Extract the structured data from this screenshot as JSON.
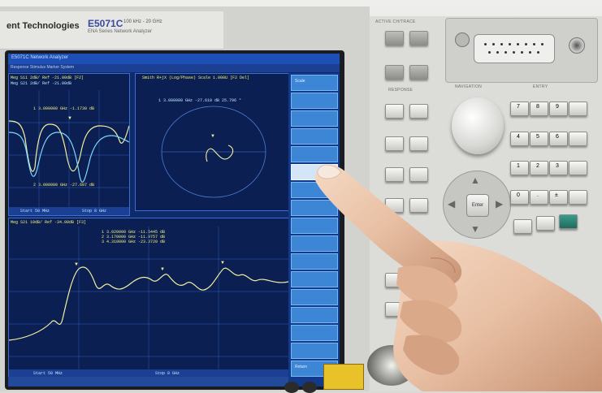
{
  "instrument": {
    "brand": "ent Technologies",
    "model": "E5071C",
    "spec": "100 kHz - 20 GHz",
    "description": "ENA Series Network Analyzer"
  },
  "screen": {
    "title": "E5071C Network Analyzer",
    "menu": "Response  Stimulus  Marker  System",
    "trace1": {
      "header": "Meg S11 2dB/ Ref -21.00dB [F2]",
      "subheader": "Meg S21 2dB/ Ref -21.00dB",
      "marker1": "1  3.000000 GHz -1.1730 dB",
      "marker2": "2  3.000000 GHz -27.607 dB",
      "footer_left": "Start 50 MHz",
      "footer_right": "Stop 8 GHz"
    },
    "trace2": {
      "header": "Smith R+jX (Log/Phase) Scale 1.000U [F2 Del]",
      "marker": "1  3.000000 GHz -27.610 dB  25.796 °"
    },
    "trace3": {
      "header": "Meg S21 10dB/ Ref -34.00dB [F3]",
      "markers": [
        "1  3.020000 GHz -11.5445 dB",
        "2  3.170000 GHz -11.9757 dB",
        "3  4.310000 GHz -23.3720 dB"
      ],
      "footer_left": "Start 50 MHz",
      "footer_right": "Stop 8 GHz"
    },
    "softkeys": [
      "Scale",
      "",
      "",
      "",
      "",
      "",
      "",
      "",
      "",
      "",
      "",
      "",
      "",
      "",
      "",
      "",
      "Return"
    ],
    "softkey_selected_index": 5
  },
  "panel": {
    "active_ch_trace_header": "ACTIVE CH/TRACE",
    "response_header": "RESPONSE",
    "navigation_header": "NAVIGATION",
    "entry_header": "ENTRY",
    "keypad": [
      "7",
      "8",
      "9",
      "",
      "4",
      "5",
      "6",
      "",
      "1",
      "2",
      "3",
      "",
      "0",
      ".",
      "±",
      ""
    ],
    "dpad_center": "Enter"
  },
  "colors": {
    "screen_bg": "#0d2a6a",
    "trace_yellow": "#f3f0a0",
    "trace_cyan": "#7fd8ff",
    "softkey_blue": "#3d86d6",
    "brand_blue": "#3a4aa0"
  }
}
